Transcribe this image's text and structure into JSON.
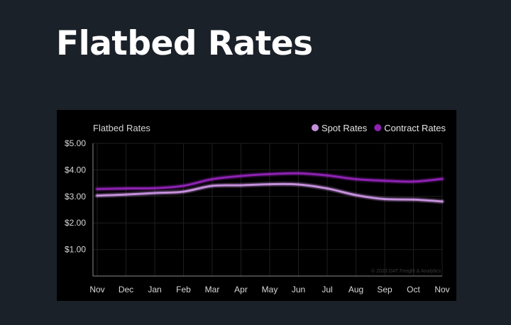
{
  "page": {
    "title": "Flatbed Rates"
  },
  "chart_data": {
    "type": "line",
    "title": "Flatbed Rates",
    "xlabel": "",
    "ylabel": "",
    "categories": [
      "Nov",
      "Dec",
      "Jan",
      "Feb",
      "Mar",
      "Apr",
      "May",
      "Jun",
      "Jul",
      "Aug",
      "Sep",
      "Oct",
      "Nov"
    ],
    "y_ticks": [
      {
        "value": 1,
        "label": "$1.00"
      },
      {
        "value": 2,
        "label": "$2.00"
      },
      {
        "value": 3,
        "label": "$3.00"
      },
      {
        "value": 4,
        "label": "$4.00"
      },
      {
        "value": 5,
        "label": "$5.00"
      }
    ],
    "ylim": [
      0,
      5
    ],
    "grid": true,
    "legend_position": "top-right",
    "series": [
      {
        "name": "Spot Rates",
        "color": "#c590dc",
        "values": [
          3.03,
          3.07,
          3.13,
          3.18,
          3.4,
          3.42,
          3.46,
          3.45,
          3.3,
          3.05,
          2.9,
          2.88,
          2.81
        ]
      },
      {
        "name": "Contract Rates",
        "color": "#8e22b3",
        "values": [
          3.28,
          3.3,
          3.31,
          3.4,
          3.65,
          3.77,
          3.84,
          3.87,
          3.79,
          3.65,
          3.59,
          3.56,
          3.66
        ]
      }
    ],
    "watermark": "© 2023 DAT Freight & Analytics"
  }
}
